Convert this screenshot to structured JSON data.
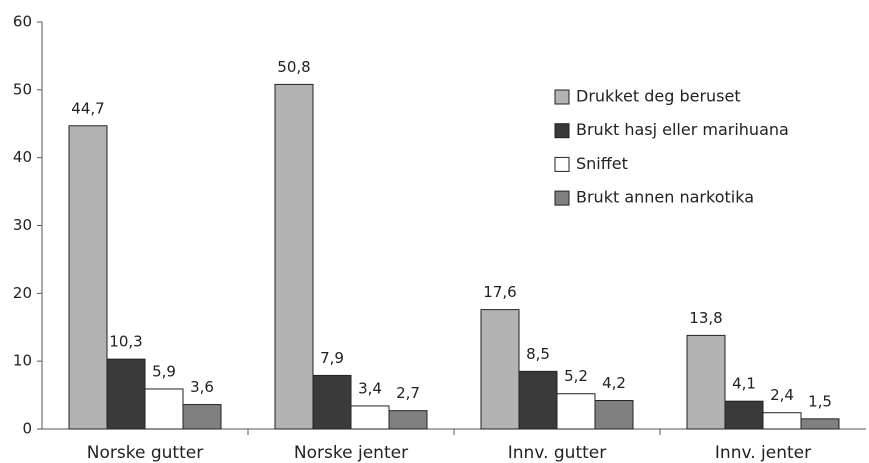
{
  "chart_data": {
    "type": "bar",
    "categories": [
      "Norske gutter",
      "Norske jenter",
      "Innv. gutter",
      "Innv. jenter"
    ],
    "series": [
      {
        "name": "Drukket deg beruset",
        "color": "#b3b3b3",
        "values": [
          44.7,
          50.8,
          17.6,
          13.8
        ],
        "value_labels": [
          "44,7",
          "50,8",
          "17,6",
          "13,8"
        ]
      },
      {
        "name": "Brukt hasj eller marihuana",
        "color": "#3a3a3a",
        "values": [
          10.3,
          7.9,
          8.5,
          4.1
        ],
        "value_labels": [
          "10,3",
          "7,9",
          "8,5",
          "4,1"
        ]
      },
      {
        "name": "Sniffet",
        "color": "#ffffff",
        "values": [
          5.9,
          3.4,
          5.2,
          2.4
        ],
        "value_labels": [
          "5,9",
          "3,4",
          "5,2",
          "2,4"
        ]
      },
      {
        "name": "Brukt annen narkotika",
        "color": "#808080",
        "values": [
          3.6,
          2.7,
          4.2,
          1.5
        ],
        "value_labels": [
          "3,6",
          "2,7",
          "4,2",
          "1,5"
        ]
      }
    ],
    "ylim": [
      0,
      60
    ],
    "yticks": [
      0,
      10,
      20,
      30,
      40,
      50,
      60
    ],
    "grid": false,
    "legend": "upper right"
  }
}
